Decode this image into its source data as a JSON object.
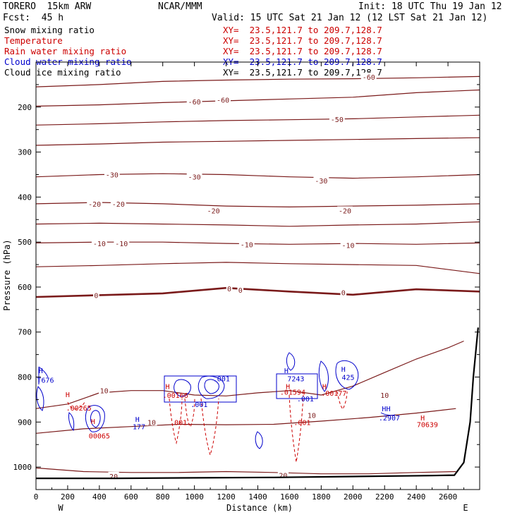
{
  "header": {
    "model": "TORERO  15km ARW",
    "org": "NCAR/MMM",
    "init": "Init: 18 UTC Thu 19 Jan 12",
    "fcst": "Fcst:  45 h",
    "valid": "Valid: 15 UTC Sat 21 Jan 12 (12 LST Sat 21 Jan 12)"
  },
  "fields": [
    {
      "name": "Snow mixing ratio",
      "xy": "XY=  23.5,121.7 to 209.7,128.7",
      "color": "#000000"
    },
    {
      "name": "Temperature",
      "xy": "XY=  23.5,121.7 to 209.7,128.7",
      "color": "#cc0000"
    },
    {
      "name": "Rain water mixing ratio",
      "xy": "XY=  23.5,121.7 to 209.7,128.7",
      "color": "#cc0000"
    },
    {
      "name": "Cloud water mixing ratio",
      "xy": "XY=  23.5,121.7 to 209.7,128.7",
      "color": "#0000cc"
    },
    {
      "name": "Cloud ice mixing ratio",
      "xy": "XY=  23.5,121.7 to 209.7,128.7",
      "color": "#000000"
    }
  ],
  "colors": {
    "temperature": "#7a1a1a",
    "rain": "#cc0000",
    "cloud_water": "#0000cc",
    "terrain": "#000000"
  },
  "chart_data": {
    "type": "line",
    "title": "",
    "xlabel": "Distance (km)",
    "ylabel": "Pressure (hPa)",
    "xlim": [
      0,
      2800
    ],
    "ylim": [
      1050,
      100
    ],
    "x_ticks": [
      "0",
      "200",
      "400",
      "600",
      "800",
      "1000",
      "1200",
      "1400",
      "1600",
      "1800",
      "2000",
      "2200",
      "2400",
      "2600"
    ],
    "y_ticks": [
      "200",
      "300",
      "400",
      "500",
      "600",
      "700",
      "800",
      "900",
      "1000"
    ],
    "x_ends": {
      "left": "W",
      "right": "E"
    },
    "temperature_isotherms": [
      {
        "value": -60,
        "x": [
          0,
          400,
          800,
          1200,
          1600,
          2000,
          2400,
          2800
        ],
        "p": [
          155,
          150,
          143,
          140,
          138,
          137,
          135,
          132
        ]
      },
      {
        "value": -60,
        "x": [
          0,
          400,
          800,
          1200,
          1600,
          2000,
          2400,
          2800
        ],
        "p": [
          198,
          195,
          190,
          186,
          182,
          178,
          168,
          162
        ]
      },
      {
        "value": -50,
        "x": [
          0,
          400,
          800,
          1200,
          1600,
          2000,
          2400,
          2800
        ],
        "p": [
          240,
          237,
          233,
          230,
          228,
          226,
          222,
          218
        ]
      },
      {
        "value": -40,
        "x": [
          0,
          400,
          800,
          1200,
          1600,
          2000,
          2400,
          2800
        ],
        "p": [
          285,
          282,
          278,
          276,
          274,
          272,
          270,
          268
        ]
      },
      {
        "value": -30,
        "x": [
          0,
          400,
          800,
          1200,
          1600,
          2000,
          2400,
          2800
        ],
        "p": [
          355,
          350,
          348,
          350,
          355,
          358,
          355,
          350
        ]
      },
      {
        "value": -20,
        "x": [
          0,
          400,
          800,
          1200,
          1600,
          2000,
          2400,
          2800
        ],
        "p": [
          415,
          412,
          415,
          420,
          422,
          420,
          418,
          415
        ]
      },
      {
        "value": -20,
        "x": [
          0,
          400,
          800,
          1200,
          1600,
          2000,
          2400,
          2800
        ],
        "p": [
          460,
          458,
          460,
          462,
          465,
          462,
          460,
          455
        ]
      },
      {
        "value": -10,
        "x": [
          0,
          400,
          800,
          1200,
          1600,
          2000,
          2400,
          2800
        ],
        "p": [
          502,
          500,
          500,
          503,
          505,
          503,
          505,
          502
        ]
      },
      {
        "value": -10,
        "x": [
          0,
          400,
          800,
          1200,
          1600,
          2000,
          2400,
          2800
        ],
        "p": [
          555,
          552,
          548,
          545,
          548,
          550,
          552,
          570
        ]
      },
      {
        "value": 0,
        "x": [
          0,
          400,
          800,
          1200,
          1600,
          2000,
          2400,
          2800
        ],
        "p": [
          622,
          618,
          614,
          602,
          610,
          617,
          605,
          610
        ]
      }
    ],
    "contour_labels": [
      {
        "text": "-60",
        "x": 2100,
        "p": 133,
        "series": "temperature"
      },
      {
        "text": "-60",
        "x": 1000,
        "p": 188,
        "series": "temperature"
      },
      {
        "text": "-60",
        "x": 1180,
        "p": 184,
        "series": "temperature"
      },
      {
        "text": "-50",
        "x": 1900,
        "p": 227,
        "series": "temperature"
      },
      {
        "text": "-30",
        "x": 480,
        "p": 350,
        "series": "temperature"
      },
      {
        "text": "-30",
        "x": 1000,
        "p": 355,
        "series": "temperature"
      },
      {
        "text": "-30",
        "x": 1800,
        "p": 363,
        "series": "temperature"
      },
      {
        "text": "-20",
        "x": 370,
        "p": 415,
        "series": "temperature"
      },
      {
        "text": "-20",
        "x": 520,
        "p": 415,
        "series": "temperature"
      },
      {
        "text": "-20",
        "x": 1120,
        "p": 430,
        "series": "temperature"
      },
      {
        "text": "-20",
        "x": 1950,
        "p": 430,
        "series": "temperature"
      },
      {
        "text": "-10",
        "x": 400,
        "p": 503,
        "series": "temperature"
      },
      {
        "text": "-10",
        "x": 540,
        "p": 503,
        "series": "temperature"
      },
      {
        "text": "-10",
        "x": 1330,
        "p": 505,
        "series": "temperature"
      },
      {
        "text": "-10",
        "x": 1970,
        "p": 507,
        "series": "temperature"
      },
      {
        "text": "0",
        "x": 380,
        "p": 618,
        "series": "temperature"
      },
      {
        "text": "0",
        "x": 1220,
        "p": 603,
        "series": "temperature"
      },
      {
        "text": "0",
        "x": 1290,
        "p": 606,
        "series": "temperature"
      },
      {
        "text": "0",
        "x": 1940,
        "p": 612,
        "series": "temperature"
      },
      {
        "text": "10",
        "x": 430,
        "p": 830,
        "series": "temperature"
      },
      {
        "text": "10",
        "x": 730,
        "p": 900,
        "series": "temperature"
      },
      {
        "text": "10",
        "x": 1740,
        "p": 885,
        "series": "temperature"
      },
      {
        "text": "10",
        "x": 2200,
        "p": 840,
        "series": "temperature"
      },
      {
        "text": "20",
        "x": 490,
        "p": 1020,
        "series": "temperature"
      },
      {
        "text": "20",
        "x": 1560,
        "p": 1018,
        "series": "temperature"
      },
      {
        "text": "H",
        "x": 30,
        "p": 785,
        "series": "cloud_water"
      },
      {
        "text": "T676",
        "x": 60,
        "p": 806,
        "series": "cloud_water"
      },
      {
        "text": "H",
        "x": 200,
        "p": 838,
        "series": "rain"
      },
      {
        "text": ".00265",
        "x": 270,
        "p": 868,
        "series": "rain"
      },
      {
        "text": "H",
        "x": 360,
        "p": 898,
        "series": "rain"
      },
      {
        "text": "00065",
        "x": 400,
        "p": 930,
        "series": "rain"
      },
      {
        "text": "H",
        "x": 640,
        "p": 893,
        "series": "cloud_water"
      },
      {
        "text": "177",
        "x": 650,
        "p": 910,
        "series": "cloud_water"
      },
      {
        "text": "H",
        "x": 830,
        "p": 820,
        "series": "rain"
      },
      {
        "text": ".00166",
        "x": 880,
        "p": 840,
        "series": "rain"
      },
      {
        "text": ".001",
        "x": 1170,
        "p": 803,
        "series": "cloud_water"
      },
      {
        "text": ".001",
        "x": 1030,
        "p": 860,
        "series": "cloud_water"
      },
      {
        "text": ".001",
        "x": 900,
        "p": 900,
        "series": "rain"
      },
      {
        "text": "H",
        "x": 1580,
        "p": 785,
        "series": "cloud_water"
      },
      {
        "text": "7243",
        "x": 1640,
        "p": 803,
        "series": "cloud_water"
      },
      {
        "text": "H",
        "x": 1590,
        "p": 820,
        "series": "rain"
      },
      {
        "text": ".01594",
        "x": 1620,
        "p": 833,
        "series": "rain"
      },
      {
        "text": ".001",
        "x": 1700,
        "p": 848,
        "series": "cloud_water"
      },
      {
        "text": "H",
        "x": 1820,
        "p": 820,
        "series": "rain"
      },
      {
        "text": ".00177",
        "x": 1880,
        "p": 835,
        "series": "rain"
      },
      {
        "text": "H",
        "x": 1940,
        "p": 782,
        "series": "cloud_water"
      },
      {
        "text": "425",
        "x": 1970,
        "p": 800,
        "series": "cloud_water"
      },
      {
        "text": ".001",
        "x": 1680,
        "p": 900,
        "series": "rain"
      },
      {
        "text": "HH",
        "x": 2210,
        "p": 870,
        "series": "cloud_water"
      },
      {
        "text": ".2907",
        "x": 2230,
        "p": 890,
        "series": "cloud_water"
      },
      {
        "text": "H",
        "x": 2440,
        "p": 890,
        "series": "rain"
      },
      {
        "text": "70639",
        "x": 2470,
        "p": 905,
        "series": "rain"
      }
    ],
    "terrain": {
      "x": [
        0,
        500,
        1000,
        1500,
        2000,
        2500,
        2640,
        2700,
        2740,
        2760,
        2790
      ],
      "p": [
        1025,
        1025,
        1024,
        1023,
        1021,
        1019,
        1018,
        990,
        900,
        800,
        690
      ]
    }
  }
}
